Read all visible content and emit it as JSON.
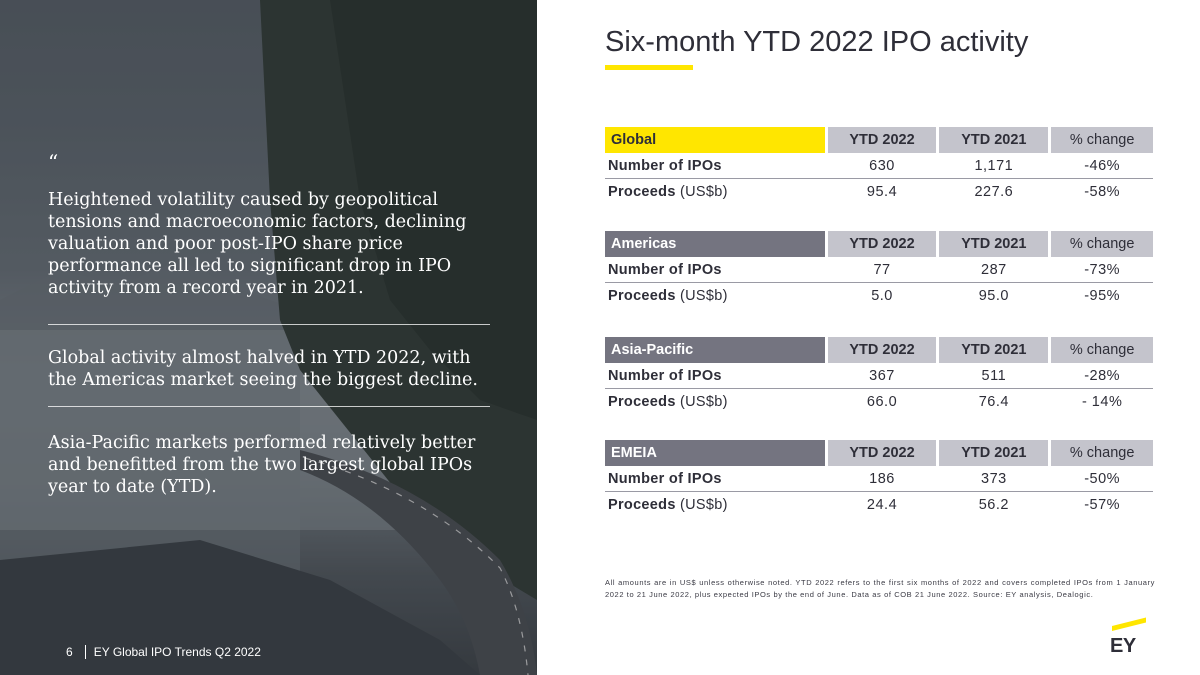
{
  "left": {
    "quote_mark": "“",
    "paragraphs": [
      "Heightened volatility caused by geopolitical tensions and macroeconomic factors, declining valuation and poor post-IPO share price performance all led to significant drop in IPO activity from a record year in 2021.",
      "Global activity almost halved in YTD 2022, with the Americas market seeing the biggest decline.",
      "Asia-Pacific markets performed relatively better and benefitted from the two largest global IPOs year to date (YTD)."
    ],
    "footer": {
      "page_number": "6",
      "doc_title": "EY Global IPO Trends Q2 2022"
    }
  },
  "title": "Six-month YTD 2022 IPO activity",
  "columns": {
    "ytd2022": "YTD 2022",
    "ytd2021": "YTD 2021",
    "change": "% change"
  },
  "row_labels": {
    "number": "Number of IPOs",
    "proceeds": "Proceeds",
    "proceeds_unit": "(US$b)"
  },
  "tables": {
    "global": {
      "region": "Global",
      "number": {
        "ytd2022": "630",
        "ytd2021": "1,171",
        "change": "-46%"
      },
      "proceeds": {
        "ytd2022": "95.4",
        "ytd2021": "227.6",
        "change": "-58%"
      }
    },
    "americas": {
      "region": "Americas",
      "number": {
        "ytd2022": "77",
        "ytd2021": "287",
        "change": "-73%"
      },
      "proceeds": {
        "ytd2022": "5.0",
        "ytd2021": "95.0",
        "change": "-95%"
      }
    },
    "asia": {
      "region": "Asia-Pacific",
      "number": {
        "ytd2022": "367",
        "ytd2021": "511",
        "change": "-28%"
      },
      "proceeds": {
        "ytd2022": "66.0",
        "ytd2021": "76.4",
        "change": "- 14%"
      }
    },
    "emeia": {
      "region": "EMEIA",
      "number": {
        "ytd2022": "186",
        "ytd2021": "373",
        "change": "-50%"
      },
      "proceeds": {
        "ytd2022": "24.4",
        "ytd2021": "56.2",
        "change": "-57%"
      }
    }
  },
  "footnote": "All amounts are in US$ unless otherwise noted. YTD 2022 refers to the first six months of 2022 and covers completed IPOs from 1 January 2022 to 21 June 2022, plus expected IPOs by the end of June. Data as of COB 21 June 2022. Source: EY analysis, Dealogic.",
  "logo_text": "EY",
  "colors": {
    "accent": "#ffe600",
    "dark": "#2e2e38",
    "region_dark": "#747480",
    "header_grey": "#c4c4cc"
  }
}
